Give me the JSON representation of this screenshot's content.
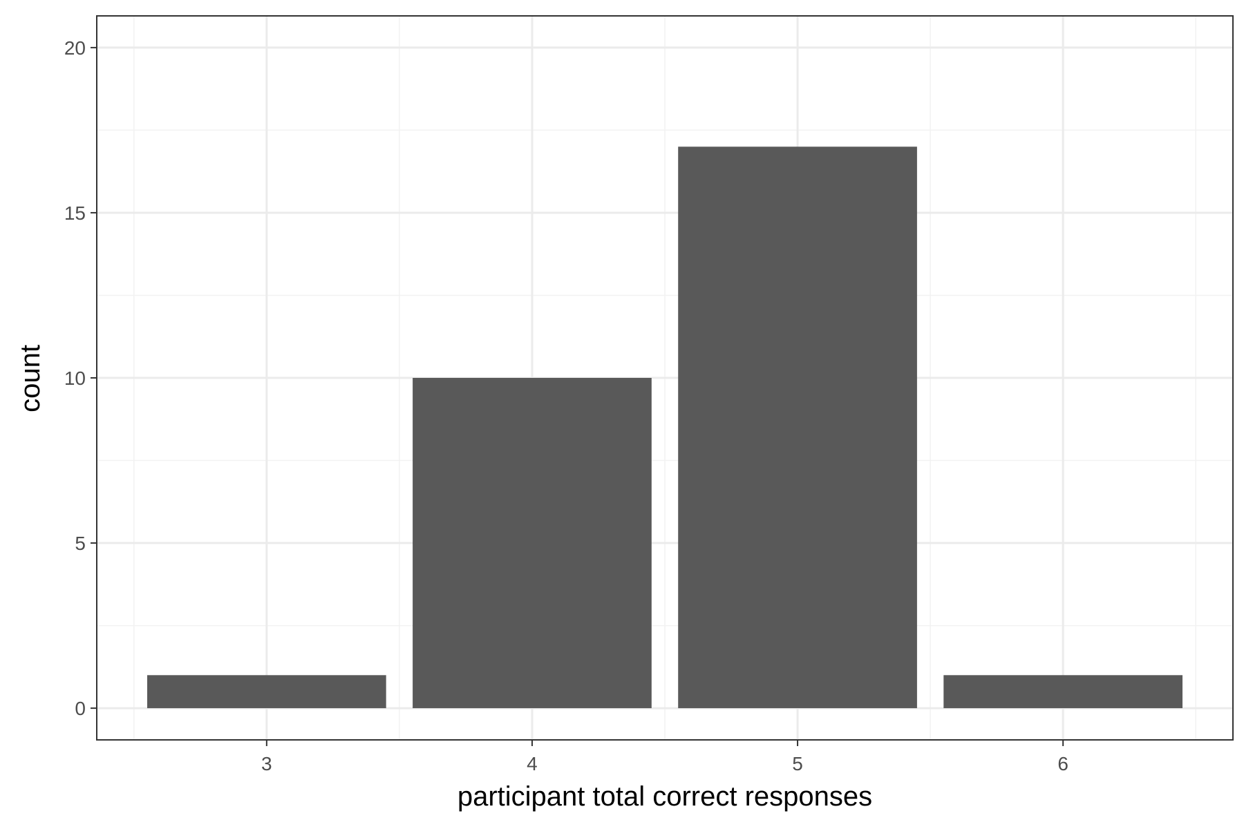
{
  "chart_data": {
    "type": "bar",
    "categories": [
      "3",
      "4",
      "5",
      "6"
    ],
    "x_values": [
      3,
      4,
      5,
      6
    ],
    "values": [
      1,
      10,
      17,
      1
    ],
    "xlabel": "participant total correct responses",
    "ylabel": "count",
    "xlim": [
      2.36,
      6.64
    ],
    "ylim": [
      -0.96,
      20.96
    ],
    "y_ticks": [
      0,
      5,
      10,
      15,
      20
    ],
    "x_ticks": [
      3,
      4,
      5,
      6
    ],
    "grid": true,
    "bar_color": "#595959",
    "grid_major_color": "#ebebeb",
    "grid_minor_color": "#f2f2f2",
    "panel_border_color": "#333333",
    "background": "#ffffff"
  }
}
